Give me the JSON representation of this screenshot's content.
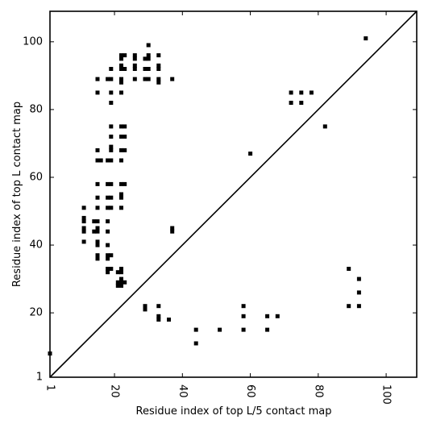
{
  "chart_data": {
    "type": "scatter",
    "title": "",
    "xlabel": "Residue index of top L/5 contact map",
    "ylabel": "Residue index of top L contact map",
    "xlim": [
      1,
      109
    ],
    "ylim": [
      1,
      109
    ],
    "x_ticks": [
      1,
      20,
      40,
      60,
      80,
      100
    ],
    "y_ticks": [
      1,
      20,
      40,
      60,
      80,
      100
    ],
    "x_tick_labels": [
      "1",
      "20",
      "40",
      "60",
      "80",
      "100"
    ],
    "y_tick_labels": [
      "1",
      "20",
      "40",
      "60",
      "80",
      "100"
    ],
    "x_tick_rotation": -90,
    "grid": false,
    "marker": "square",
    "marker_color": "#000000",
    "diagonal_line": true,
    "series": [
      {
        "points_upper_left": [
          [
            1,
            8
          ],
          [
            11,
            51
          ],
          [
            11,
            48
          ],
          [
            11,
            47
          ],
          [
            11,
            45
          ],
          [
            11,
            44
          ],
          [
            11,
            41
          ],
          [
            14,
            47
          ],
          [
            14,
            44
          ],
          [
            15,
            89
          ],
          [
            15,
            85
          ],
          [
            15,
            68
          ],
          [
            15,
            65
          ],
          [
            15,
            58
          ],
          [
            15,
            54
          ],
          [
            15,
            51
          ],
          [
            15,
            47
          ],
          [
            15,
            45
          ],
          [
            15,
            44
          ],
          [
            15,
            41
          ],
          [
            15,
            40
          ],
          [
            15,
            37
          ],
          [
            15,
            36
          ],
          [
            16,
            65
          ],
          [
            18,
            89
          ],
          [
            18,
            65
          ],
          [
            18,
            58
          ],
          [
            18,
            54
          ],
          [
            18,
            51
          ],
          [
            18,
            47
          ],
          [
            18,
            44
          ],
          [
            18,
            40
          ],
          [
            18,
            37
          ],
          [
            18,
            36
          ],
          [
            18,
            33
          ],
          [
            18,
            32
          ],
          [
            19,
            92
          ],
          [
            19,
            89
          ],
          [
            19,
            85
          ],
          [
            19,
            82
          ],
          [
            19,
            75
          ],
          [
            19,
            72
          ],
          [
            19,
            69
          ],
          [
            19,
            68
          ],
          [
            19,
            65
          ],
          [
            19,
            58
          ],
          [
            19,
            54
          ],
          [
            19,
            51
          ],
          [
            19,
            37
          ],
          [
            19,
            33
          ],
          [
            21,
            32
          ],
          [
            21,
            29
          ],
          [
            21,
            28
          ],
          [
            22,
            96
          ],
          [
            22,
            95
          ],
          [
            22,
            93
          ],
          [
            22,
            92
          ],
          [
            22,
            89
          ],
          [
            22,
            88
          ],
          [
            22,
            85
          ],
          [
            22,
            75
          ],
          [
            22,
            72
          ],
          [
            22,
            68
          ],
          [
            22,
            65
          ],
          [
            22,
            58
          ],
          [
            22,
            55
          ],
          [
            22,
            54
          ],
          [
            22,
            51
          ],
          [
            22,
            33
          ],
          [
            22,
            32
          ],
          [
            22,
            30
          ],
          [
            22,
            29
          ],
          [
            22,
            28
          ],
          [
            23,
            96
          ],
          [
            23,
            92
          ],
          [
            23,
            75
          ],
          [
            23,
            72
          ],
          [
            23,
            68
          ],
          [
            23,
            58
          ],
          [
            23,
            29
          ],
          [
            26,
            96
          ],
          [
            26,
            95
          ],
          [
            26,
            93
          ],
          [
            26,
            92
          ],
          [
            26,
            89
          ],
          [
            29,
            95
          ],
          [
            29,
            92
          ],
          [
            29,
            89
          ],
          [
            30,
            99
          ],
          [
            30,
            96
          ],
          [
            30,
            95
          ],
          [
            30,
            92
          ],
          [
            30,
            89
          ],
          [
            33,
            96
          ],
          [
            33,
            93
          ],
          [
            33,
            92
          ],
          [
            33,
            89
          ],
          [
            33,
            88
          ],
          [
            37,
            89
          ],
          [
            37,
            45
          ],
          [
            37,
            44
          ],
          [
            72,
            85
          ],
          [
            72,
            82
          ],
          [
            75,
            85
          ],
          [
            75,
            82
          ],
          [
            78,
            85
          ],
          [
            82,
            75
          ],
          [
            94,
            101
          ],
          [
            60,
            67
          ]
        ],
        "points_lower_right": [
          [
            29,
            22
          ],
          [
            29,
            21
          ],
          [
            33,
            22
          ],
          [
            33,
            19
          ],
          [
            33,
            18
          ],
          [
            36,
            18
          ],
          [
            44,
            15
          ],
          [
            44,
            11
          ],
          [
            51,
            15
          ],
          [
            58,
            22
          ],
          [
            58,
            19
          ],
          [
            58,
            15
          ],
          [
            65,
            19
          ],
          [
            65,
            15
          ],
          [
            68,
            19
          ],
          [
            89,
            33
          ],
          [
            89,
            22
          ],
          [
            92,
            30
          ],
          [
            92,
            26
          ],
          [
            92,
            22
          ]
        ]
      }
    ]
  }
}
